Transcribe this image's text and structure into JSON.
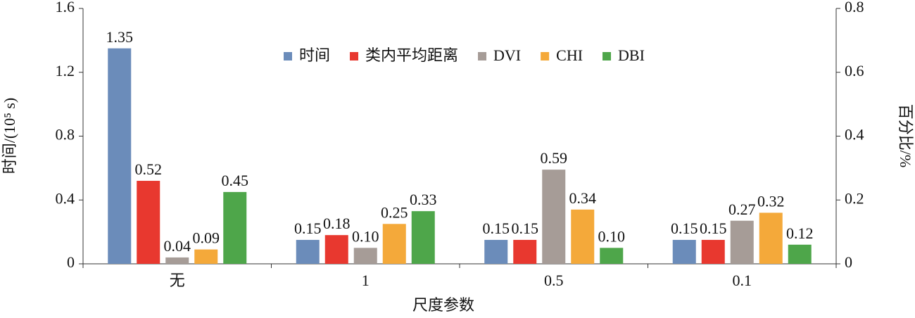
{
  "chart_data": {
    "type": "bar",
    "x_label": "尺度参数",
    "y_label": "时间/(10⁵ s)",
    "y2_label": "百分比/%",
    "categories": [
      "无",
      "1",
      "0.5",
      "0.1"
    ],
    "series": [
      {
        "name": "时间",
        "color": "#6b8cba",
        "values": [
          1.35,
          0.15,
          0.15,
          0.15
        ],
        "value_labels": [
          "1.35",
          "0.15",
          "0.15",
          "0.15"
        ]
      },
      {
        "name": "类内平均距离",
        "color": "#e8382f",
        "values": [
          0.52,
          0.18,
          0.15,
          0.15
        ],
        "value_labels": [
          "0.52",
          "0.18",
          "0.15",
          "0.15"
        ]
      },
      {
        "name": "DVI",
        "color": "#a69c97",
        "values": [
          0.04,
          0.1,
          0.59,
          0.27
        ],
        "value_labels": [
          "0.04",
          "0.10",
          "0.59",
          "0.27"
        ]
      },
      {
        "name": "CHI",
        "color": "#f4a93a",
        "values": [
          0.09,
          0.25,
          0.34,
          0.32
        ],
        "value_labels": [
          "0.09",
          "0.25",
          "0.34",
          "0.32"
        ]
      },
      {
        "name": "DBI",
        "color": "#4ea64a",
        "values": [
          0.45,
          0.33,
          0.1,
          0.12
        ],
        "value_labels": [
          "0.45",
          "0.33",
          "0.10",
          "0.12"
        ]
      }
    ],
    "ylim": [
      0,
      1.6
    ],
    "yticks": [
      0,
      0.4,
      0.8,
      1.2,
      1.6
    ],
    "y2lim": [
      0,
      0.8
    ],
    "y2ticks": [
      0,
      0.2,
      0.4,
      0.6,
      0.8
    ],
    "legend": "top"
  }
}
